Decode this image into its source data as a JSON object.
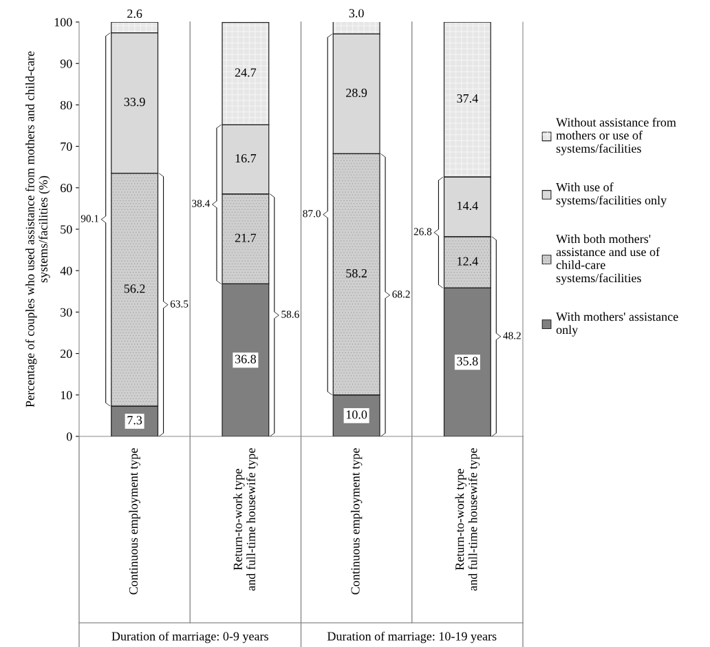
{
  "chart_data": {
    "type": "bar",
    "stacked": true,
    "ylabel": "Percentage of couples who used assistance from mothers and child-care\nsystems/facilities (%)",
    "categories": [
      "Continuous employment type",
      "Return-to-work type\nand full-time housewife type",
      "Continuous employment type",
      "Return-to-work type\nand full-time housewife type"
    ],
    "series": [
      {
        "name": "With mothers' assistance\nonly",
        "color": "#7f7f7f",
        "values": [
          7.3,
          36.8,
          10.0,
          35.8
        ],
        "value_labels": [
          "7.3",
          "36.8",
          "10.0",
          "35.8"
        ]
      },
      {
        "name": "With both mothers'\nassistance and use of\nchild-care\nsystems/facilities",
        "color": "#d0d0d0",
        "values": [
          56.2,
          21.7,
          58.2,
          12.4
        ],
        "value_labels": [
          "56.2",
          "21.7",
          "58.2",
          "12.4"
        ]
      },
      {
        "name": "With use of\nsystems/facilities only",
        "color": "#d9d9d9",
        "values": [
          33.9,
          16.7,
          28.9,
          14.4
        ],
        "value_labels": [
          "33.9",
          "16.7",
          "28.9",
          "14.4"
        ]
      },
      {
        "name": "Without assistance from\nmothers or use of\nsystems/facilities",
        "color": "#e6e6e6",
        "values": [
          2.6,
          24.7,
          3.0,
          37.4
        ],
        "value_labels": [
          "2.6",
          "24.7",
          "3.0",
          "37.4"
        ]
      }
    ],
    "ylim": [
      0,
      100
    ],
    "yticks": [
      0,
      10,
      20,
      30,
      40,
      50,
      60,
      70,
      80,
      90,
      100
    ],
    "grid": false,
    "legend": "right",
    "annotations": [
      "90.1",
      "63.5",
      "38.4",
      "58.6",
      "87.0",
      "68.2",
      "26.8",
      "48.2",
      "Duration of marriage: 0-9 years",
      "Duration of marriage: 10-19 years"
    ]
  }
}
